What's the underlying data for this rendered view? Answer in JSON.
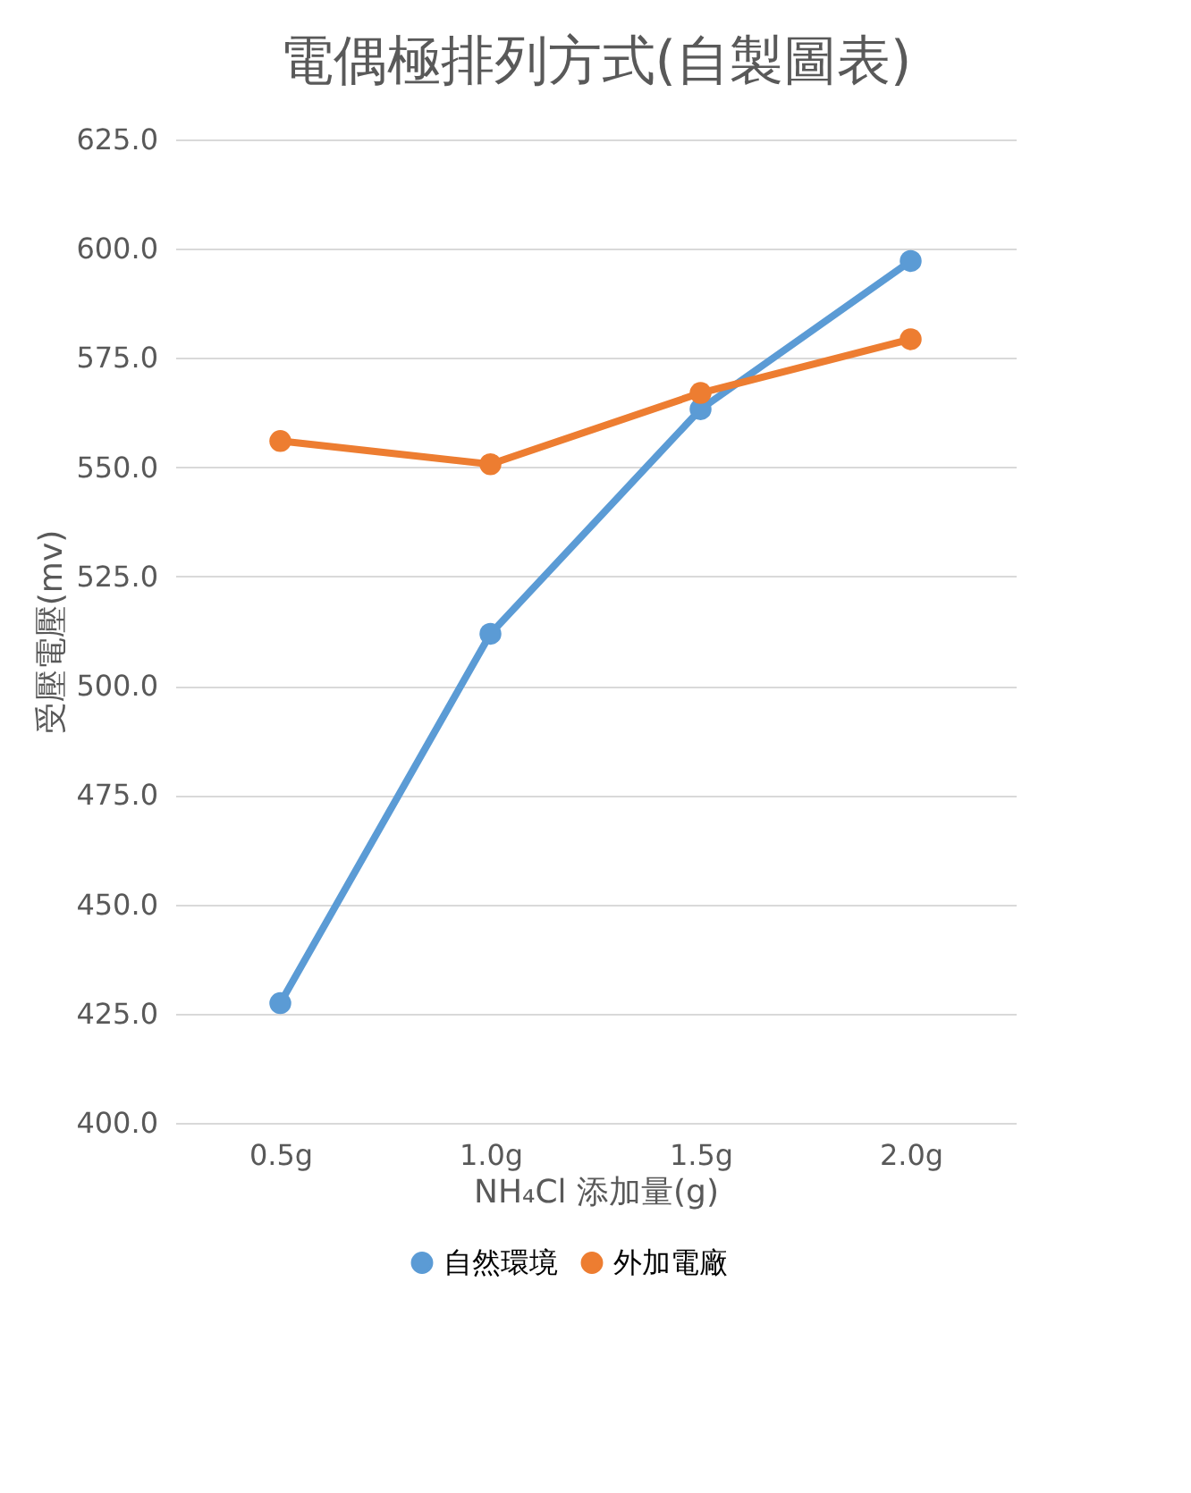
{
  "chart_data": {
    "type": "line",
    "title": "電偶極排列方式(自製圖表)",
    "xlabel": "NH₄Cl 添加量(g)",
    "ylabel": "受壓電壓(mv)",
    "categories": [
      "0.5g",
      "1.0g",
      "1.5g",
      "2.0g"
    ],
    "series": [
      {
        "name": "自然環境",
        "color": "#5b9bd5",
        "values": [
          427.4,
          511.9,
          563.3,
          597.2
        ]
      },
      {
        "name": "外加電廠",
        "color": "#ed7d31",
        "values": [
          556.0,
          550.7,
          567.0,
          579.3
        ]
      }
    ],
    "ylim": [
      400,
      625
    ],
    "yticks": [
      {
        "value": 400,
        "label": "400.0"
      },
      {
        "value": 425,
        "label": "425.0"
      },
      {
        "value": 450,
        "label": "450.0"
      },
      {
        "value": 475,
        "label": "475.0"
      },
      {
        "value": 500,
        "label": "500.0"
      },
      {
        "value": 525,
        "label": "525.0"
      },
      {
        "value": 550,
        "label": "550.0"
      },
      {
        "value": 575,
        "label": "575.0"
      },
      {
        "value": 600,
        "label": "600.0"
      },
      {
        "value": 625,
        "label": "625.0"
      }
    ],
    "grid": "y",
    "legend": "bottom",
    "marker": "circle",
    "line_style": "solid"
  }
}
